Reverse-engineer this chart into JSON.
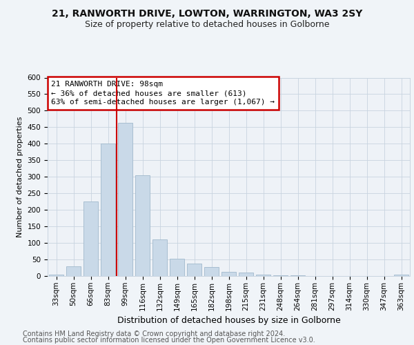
{
  "title1": "21, RANWORTH DRIVE, LOWTON, WARRINGTON, WA3 2SY",
  "title2": "Size of property relative to detached houses in Golborne",
  "xlabel": "Distribution of detached houses by size in Golborne",
  "ylabel": "Number of detached properties",
  "categories": [
    "33sqm",
    "50sqm",
    "66sqm",
    "83sqm",
    "99sqm",
    "116sqm",
    "132sqm",
    "149sqm",
    "165sqm",
    "182sqm",
    "198sqm",
    "215sqm",
    "231sqm",
    "248sqm",
    "264sqm",
    "281sqm",
    "297sqm",
    "314sqm",
    "330sqm",
    "347sqm",
    "363sqm"
  ],
  "values": [
    5,
    30,
    225,
    400,
    463,
    305,
    110,
    52,
    38,
    27,
    12,
    10,
    5,
    3,
    2,
    1,
    0,
    1,
    0,
    0,
    5
  ],
  "bar_color": "#c9d9e8",
  "bar_edge_color": "#a0b8cc",
  "vline_index": 4,
  "annotation_title": "21 RANWORTH DRIVE: 98sqm",
  "annotation_line1": "← 36% of detached houses are smaller (613)",
  "annotation_line2": "63% of semi-detached houses are larger (1,067) →",
  "annotation_box_facecolor": "#ffffff",
  "annotation_box_edgecolor": "#cc0000",
  "vline_color": "#cc0000",
  "ylim": [
    0,
    600
  ],
  "yticks": [
    0,
    50,
    100,
    150,
    200,
    250,
    300,
    350,
    400,
    450,
    500,
    550,
    600
  ],
  "footer1": "Contains HM Land Registry data © Crown copyright and database right 2024.",
  "footer2": "Contains public sector information licensed under the Open Government Licence v3.0.",
  "bg_color": "#f0f4f8",
  "plot_bg_color": "#eef2f7",
  "grid_color": "#c8d4e0",
  "title1_fontsize": 10,
  "title2_fontsize": 9,
  "xlabel_fontsize": 9,
  "ylabel_fontsize": 8,
  "tick_fontsize": 7.5,
  "footer_fontsize": 7,
  "annotation_fontsize": 8
}
